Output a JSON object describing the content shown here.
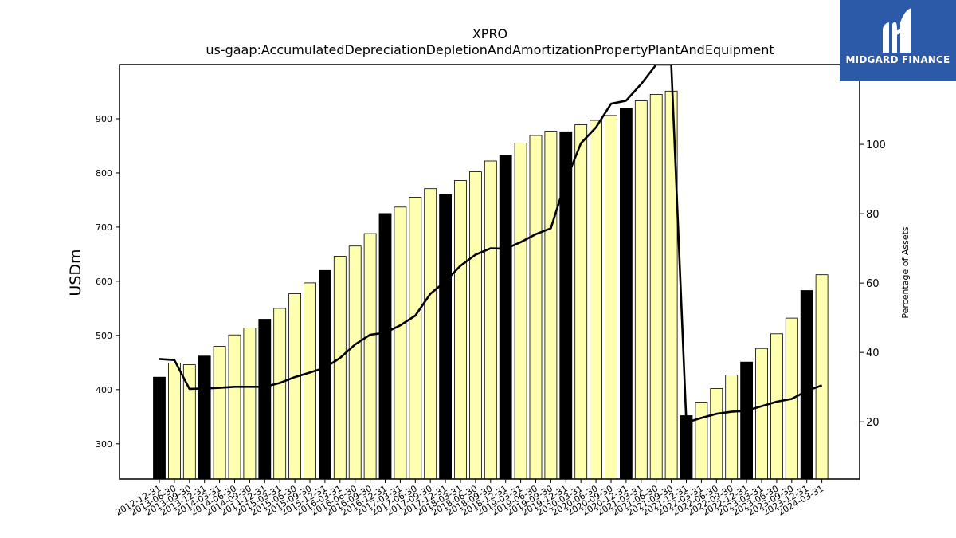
{
  "brand": {
    "name": "MIDGARD FINANCE",
    "icon": "midgard-logo-icon",
    "background_color": "#2d5aa8"
  },
  "chart_data": {
    "type": "bar",
    "title": "XPRO",
    "subtitle": "us-gaap:AccumulatedDepreciationDepletionAndAmortizationPropertyPlantAndEquipment",
    "ylabel": "USDm",
    "y2label": "Percentage of Assets",
    "ylim": [
      235,
      1000
    ],
    "y2lim": [
      3.5,
      123
    ],
    "yticks": [
      300,
      400,
      500,
      600,
      700,
      800,
      900
    ],
    "y2ticks": [
      20,
      40,
      60,
      80,
      100
    ],
    "grid": false,
    "legend": "none",
    "colors": {
      "bar_default": "#ffffb0",
      "bar_highlight": "#000000",
      "line": "#000000"
    },
    "categories": [
      "2012-12-31",
      "2013-06-30",
      "2013-09-30",
      "2013-12-31",
      "2014-03-31",
      "2014-06-30",
      "2014-09-30",
      "2014-12-31",
      "2015-03-31",
      "2015-06-30",
      "2015-09-30",
      "2015-12-31",
      "2016-03-31",
      "2016-06-30",
      "2016-09-30",
      "2016-12-31",
      "2017-03-31",
      "2017-06-30",
      "2017-09-30",
      "2017-12-31",
      "2018-03-31",
      "2018-06-30",
      "2018-09-30",
      "2018-12-31",
      "2019-03-31",
      "2019-06-30",
      "2019-09-30",
      "2019-12-31",
      "2020-03-31",
      "2020-06-30",
      "2020-09-30",
      "2020-12-31",
      "2021-03-31",
      "2021-06-30",
      "2021-09-30",
      "2021-12-31",
      "2022-03-31",
      "2022-06-30",
      "2022-09-30",
      "2022-12-31",
      "2023-03-31",
      "2023-06-30",
      "2023-09-30",
      "2023-12-31",
      "2024-03-31"
    ],
    "series": [
      {
        "kind": "bar",
        "axis": "left",
        "values": [
          423,
          449,
          446,
          462,
          480,
          501,
          514,
          530,
          550,
          577,
          597,
          620,
          646,
          665,
          688,
          725,
          737,
          755,
          771,
          760,
          786,
          802,
          822,
          833,
          855,
          869,
          877,
          876,
          889,
          897,
          906,
          919,
          933,
          945,
          951,
          352,
          377,
          402,
          427,
          451,
          476,
          503,
          532,
          583,
          612
        ],
        "highlight": [
          true,
          false,
          false,
          true,
          false,
          false,
          false,
          true,
          false,
          false,
          false,
          true,
          false,
          false,
          false,
          true,
          false,
          false,
          false,
          true,
          false,
          false,
          false,
          true,
          false,
          false,
          false,
          true,
          false,
          false,
          false,
          true,
          false,
          false,
          false,
          true,
          false,
          false,
          false,
          true,
          false,
          false,
          false,
          true,
          false
        ]
      },
      {
        "kind": "line",
        "axis": "right",
        "values": [
          38.1,
          37.8,
          29.5,
          29.6,
          29.8,
          30.1,
          30.1,
          30.1,
          31.2,
          32.9,
          34.2,
          35.6,
          38.4,
          42.3,
          45.1,
          45.7,
          47.8,
          50.6,
          56.9,
          60.5,
          65.0,
          68.2,
          70.0,
          69.9,
          71.8,
          74.1,
          75.8,
          89.5,
          100.3,
          104.9,
          111.7,
          112.6,
          117.4,
          123,
          123,
          19.8,
          21.1,
          22.3,
          22.9,
          23.2,
          24.5,
          25.8,
          26.6,
          28.9,
          30.5
        ]
      }
    ]
  }
}
